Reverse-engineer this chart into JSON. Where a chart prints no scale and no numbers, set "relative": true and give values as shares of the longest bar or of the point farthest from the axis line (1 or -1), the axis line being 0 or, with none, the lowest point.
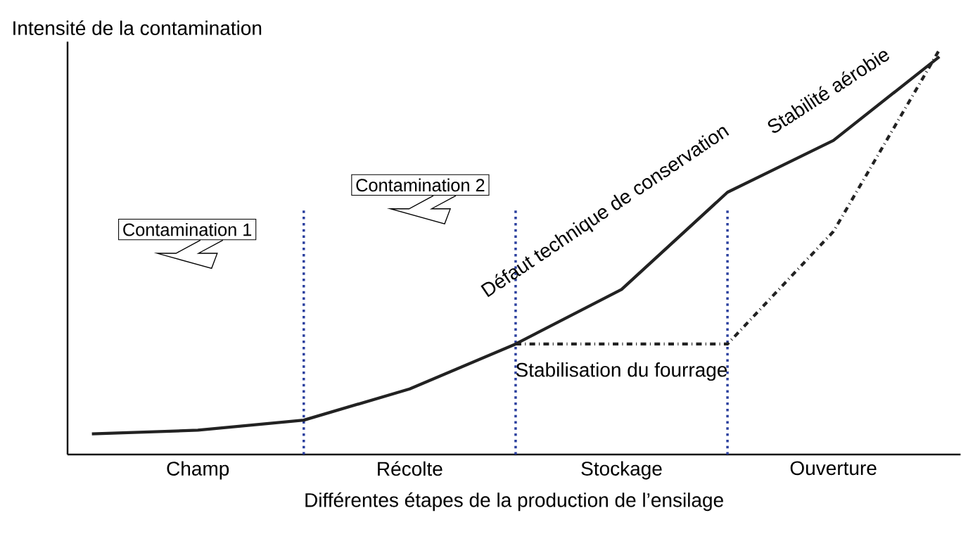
{
  "chart_data": {
    "type": "line",
    "relative": true,
    "xlabel": "Différentes étapes de la production de l’ensilage",
    "ylabel": "Intensité de la  contamination",
    "categories": [
      null,
      "Champ",
      null,
      "Récolte",
      null,
      "Stockage",
      null,
      "Ouverture",
      null
    ],
    "series": [
      {
        "color": "#222222",
        "line_style": "solid",
        "values": [
          0.051,
          0.06,
          0.085,
          0.162,
          0.273,
          0.408,
          0.648,
          0.776,
          0.983
        ]
      },
      {
        "color": "#222222",
        "line_style": "dashdot",
        "values": [
          null,
          null,
          null,
          null,
          0.273,
          0.273,
          0.273,
          0.551,
          1
        ]
      }
    ],
    "annotations": [
      "Contamination 1",
      "Contamination 2",
      "Défaut technique de conservation",
      "Stabilité aérobie",
      "Stabilisation du fourrage"
    ],
    "grid": false,
    "marker": "none"
  }
}
